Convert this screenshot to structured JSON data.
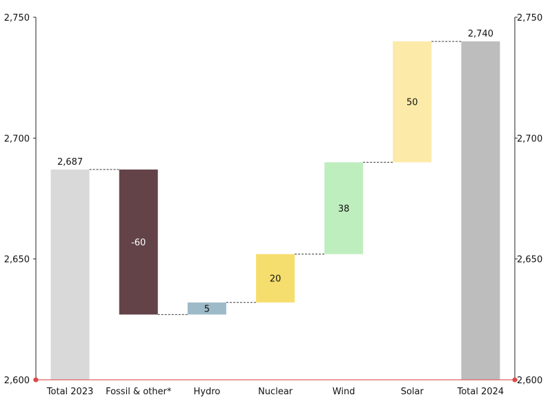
{
  "chart_data": {
    "type": "waterfall",
    "categories": [
      "Total 2023",
      "Fossil & other*",
      "Hydro",
      "Nuclear",
      "Wind",
      "Solar",
      "Total 2024"
    ],
    "values": [
      2687,
      -60,
      5,
      20,
      38,
      50,
      2740
    ],
    "kinds": [
      "total",
      "delta",
      "delta",
      "delta",
      "delta",
      "delta",
      "total"
    ],
    "labels": [
      "2,687",
      "-60",
      "5",
      "20",
      "38",
      "50",
      "2,740"
    ],
    "colors": [
      "#d9d9d9",
      "#634348",
      "#9dbac8",
      "#f6de6e",
      "#bfeebe",
      "#fbeaa8",
      "#bdbdbd"
    ],
    "label_colors": [
      "#111111",
      "#ffffff",
      "#111111",
      "#111111",
      "#111111",
      "#111111",
      "#111111"
    ],
    "ylim": [
      2600,
      2750
    ],
    "yticks": [
      2600,
      2650,
      2700,
      2750
    ],
    "ytick_labels": [
      "2,600",
      "2,650",
      "2,700",
      "2,750"
    ],
    "title": "",
    "xlabel": "",
    "ylabel": "",
    "grid": false,
    "baseline_color": "#e04848"
  }
}
